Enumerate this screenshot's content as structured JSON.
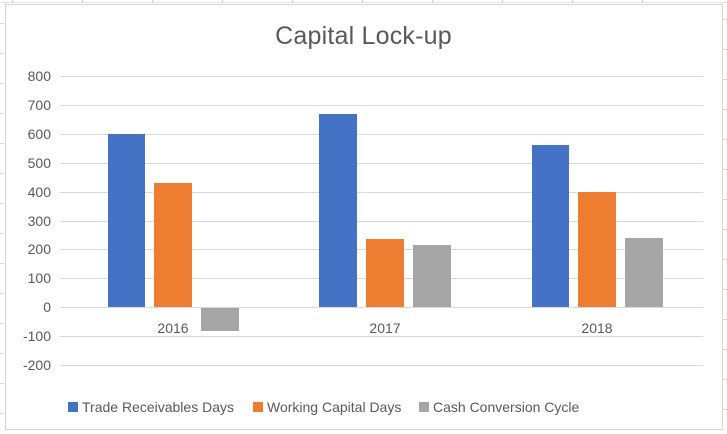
{
  "chart_data": {
    "type": "bar",
    "title": "Capital Lock-up",
    "categories": [
      "2016",
      "2017",
      "2018"
    ],
    "series": [
      {
        "name": "Trade Receivables Days",
        "color": "#4472C4",
        "values": [
          600,
          670,
          560
        ]
      },
      {
        "name": "Working Capital Days",
        "color": "#ED7D31",
        "values": [
          430,
          235,
          400
        ]
      },
      {
        "name": "Cash Conversion Cycle",
        "color": "#A5A5A5",
        "values": [
          -80,
          215,
          240
        ]
      }
    ],
    "ylim": [
      -200,
      800
    ],
    "ytick_step": 100,
    "yticks": [
      800,
      700,
      600,
      500,
      400,
      300,
      200,
      100,
      0,
      -100,
      -200
    ],
    "grid": true,
    "legend_position": "bottom",
    "xlabel": "",
    "ylabel": "",
    "colors": {
      "gridline": "#D9D9D9",
      "text": "#595959",
      "chart_border": "#D5D5D5",
      "background": "#FFFFFF"
    }
  }
}
